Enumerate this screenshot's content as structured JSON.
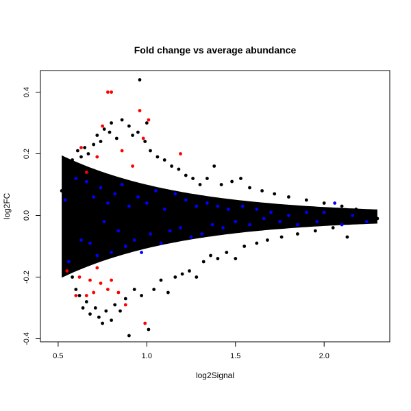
{
  "chart_data": {
    "type": "scatter",
    "title": "Fold change vs average abundance",
    "xlabel": "log2Signal",
    "ylabel": "log2FC",
    "xlim": [
      0.4,
      2.37
    ],
    "ylim": [
      -0.41,
      0.47
    ],
    "x_ticks": [
      0.5,
      1.0,
      1.5,
      2.0
    ],
    "x_tick_labels": [
      "0.5",
      "1.0",
      "1.5",
      "2.0"
    ],
    "y_ticks": [
      -0.4,
      -0.2,
      0.0,
      0.2,
      0.4
    ],
    "y_tick_labels": [
      "-0.4",
      "-0.2",
      "0.0",
      "0.2",
      "0.4"
    ],
    "grid": false,
    "legend": "none",
    "colors": {
      "background": "#000000",
      "blue": "#0000ff",
      "red": "#ff0000"
    },
    "series": [
      {
        "color": "#000000",
        "points": [
          [
            0.52,
            0.08
          ],
          [
            0.53,
            -0.11
          ],
          [
            0.55,
            0.12
          ],
          [
            0.55,
            -0.15
          ],
          [
            0.57,
            0.16
          ],
          [
            0.58,
            -0.2
          ],
          [
            0.58,
            0.18
          ],
          [
            0.6,
            -0.24
          ],
          [
            0.61,
            0.21
          ],
          [
            0.62,
            -0.26
          ],
          [
            0.63,
            0.19
          ],
          [
            0.64,
            -0.3
          ],
          [
            0.65,
            0.22
          ],
          [
            0.66,
            -0.28
          ],
          [
            0.67,
            0.2
          ],
          [
            0.68,
            -0.32
          ],
          [
            0.7,
            0.23
          ],
          [
            0.71,
            -0.3
          ],
          [
            0.72,
            0.26
          ],
          [
            0.73,
            -0.33
          ],
          [
            0.74,
            0.24
          ],
          [
            0.75,
            -0.35
          ],
          [
            0.76,
            0.28
          ],
          [
            0.77,
            -0.31
          ],
          [
            0.79,
            0.27
          ],
          [
            0.8,
            -0.34
          ],
          [
            0.8,
            0.3
          ],
          [
            0.82,
            -0.29
          ],
          [
            0.83,
            0.25
          ],
          [
            0.85,
            -0.31
          ],
          [
            0.86,
            0.31
          ],
          [
            0.88,
            -0.27
          ],
          [
            0.9,
            0.29
          ],
          [
            0.9,
            -0.39
          ],
          [
            0.92,
            0.26
          ],
          [
            0.93,
            -0.24
          ],
          [
            0.95,
            0.27
          ],
          [
            0.96,
            0.44
          ],
          [
            0.97,
            -0.26
          ],
          [
            0.99,
            0.24
          ],
          [
            1.0,
            0.3
          ],
          [
            1.01,
            -0.37
          ],
          [
            1.02,
            0.21
          ],
          [
            1.04,
            -0.24
          ],
          [
            1.06,
            0.19
          ],
          [
            1.08,
            -0.21
          ],
          [
            1.1,
            0.18
          ],
          [
            1.12,
            -0.25
          ],
          [
            1.14,
            0.16
          ],
          [
            1.16,
            -0.2
          ],
          [
            1.18,
            0.15
          ],
          [
            1.2,
            -0.19
          ],
          [
            1.22,
            0.13
          ],
          [
            1.24,
            -0.18
          ],
          [
            1.26,
            0.12
          ],
          [
            1.28,
            -0.2
          ],
          [
            1.3,
            0.1
          ],
          [
            1.32,
            -0.15
          ],
          [
            1.34,
            0.12
          ],
          [
            1.36,
            -0.13
          ],
          [
            1.38,
            0.16
          ],
          [
            1.4,
            -0.14
          ],
          [
            1.42,
            0.1
          ],
          [
            1.45,
            -0.12
          ],
          [
            1.48,
            0.11
          ],
          [
            1.5,
            -0.14
          ],
          [
            1.53,
            0.12
          ],
          [
            1.55,
            -0.1
          ],
          [
            1.58,
            0.09
          ],
          [
            1.62,
            -0.09
          ],
          [
            1.65,
            0.08
          ],
          [
            1.68,
            -0.08
          ],
          [
            1.72,
            0.07
          ],
          [
            1.76,
            -0.07
          ],
          [
            1.8,
            0.06
          ],
          [
            1.85,
            -0.06
          ],
          [
            1.9,
            0.05
          ],
          [
            1.95,
            -0.05
          ],
          [
            2.0,
            0.04
          ],
          [
            2.05,
            -0.04
          ],
          [
            2.1,
            0.03
          ],
          [
            2.13,
            -0.07
          ],
          [
            2.18,
            0.02
          ],
          [
            2.25,
            0.01
          ],
          [
            2.3,
            -0.01
          ]
        ]
      },
      {
        "color": "#0000ff",
        "points": [
          [
            0.54,
            0.05
          ],
          [
            0.56,
            -0.15
          ],
          [
            0.6,
            0.12
          ],
          [
            0.63,
            -0.08
          ],
          [
            0.66,
            0.11
          ],
          [
            0.68,
            -0.09
          ],
          [
            0.7,
            0.06
          ],
          [
            0.72,
            -0.13
          ],
          [
            0.74,
            0.09
          ],
          [
            0.76,
            -0.02
          ],
          [
            0.78,
            0.04
          ],
          [
            0.8,
            -0.12
          ],
          [
            0.82,
            0.07
          ],
          [
            0.84,
            -0.05
          ],
          [
            0.86,
            0.1
          ],
          [
            0.88,
            -0.1
          ],
          [
            0.9,
            0.03
          ],
          [
            0.93,
            -0.08
          ],
          [
            0.95,
            0.06
          ],
          [
            0.97,
            -0.12
          ],
          [
            1.0,
            0.04
          ],
          [
            1.02,
            -0.06
          ],
          [
            1.05,
            0.08
          ],
          [
            1.08,
            -0.09
          ],
          [
            1.1,
            0.02
          ],
          [
            1.13,
            -0.05
          ],
          [
            1.16,
            0.07
          ],
          [
            1.19,
            -0.04
          ],
          [
            1.22,
            0.05
          ],
          [
            1.25,
            -0.07
          ],
          [
            1.28,
            0.03
          ],
          [
            1.31,
            -0.06
          ],
          [
            1.34,
            0.04
          ],
          [
            1.37,
            -0.03
          ],
          [
            1.4,
            0.03
          ],
          [
            1.43,
            -0.04
          ],
          [
            1.46,
            0.02
          ],
          [
            1.5,
            -0.02
          ],
          [
            1.54,
            0.03
          ],
          [
            1.58,
            -0.03
          ],
          [
            1.62,
            0.02
          ],
          [
            1.66,
            -0.01
          ],
          [
            1.7,
            0.01
          ],
          [
            1.75,
            -0.02
          ],
          [
            1.8,
            0.0
          ],
          [
            1.85,
            -0.03
          ],
          [
            1.9,
            0.01
          ],
          [
            1.96,
            -0.02
          ],
          [
            2.0,
            0.01
          ],
          [
            2.06,
            0.04
          ],
          [
            2.1,
            -0.03
          ],
          [
            2.16,
            0.0
          ],
          [
            2.24,
            -0.02
          ]
        ]
      },
      {
        "color": "#ff0000",
        "points": [
          [
            0.78,
            0.4
          ],
          [
            0.8,
            0.4
          ],
          [
            0.96,
            0.34
          ],
          [
            1.01,
            0.31
          ],
          [
            0.75,
            0.29
          ],
          [
            0.98,
            0.25
          ],
          [
            0.63,
            0.22
          ],
          [
            0.86,
            0.21
          ],
          [
            1.19,
            0.2
          ],
          [
            0.72,
            0.19
          ],
          [
            0.92,
            0.16
          ],
          [
            0.66,
            0.14
          ],
          [
            0.55,
            -0.18
          ],
          [
            0.62,
            -0.2
          ],
          [
            0.68,
            -0.21
          ],
          [
            0.74,
            -0.22
          ],
          [
            0.78,
            -0.24
          ],
          [
            0.84,
            -0.25
          ],
          [
            0.6,
            -0.26
          ],
          [
            0.66,
            -0.26
          ],
          [
            0.7,
            -0.25
          ],
          [
            0.88,
            -0.29
          ],
          [
            0.99,
            -0.35
          ],
          [
            0.8,
            -0.21
          ],
          [
            0.72,
            -0.17
          ]
        ]
      }
    ]
  }
}
